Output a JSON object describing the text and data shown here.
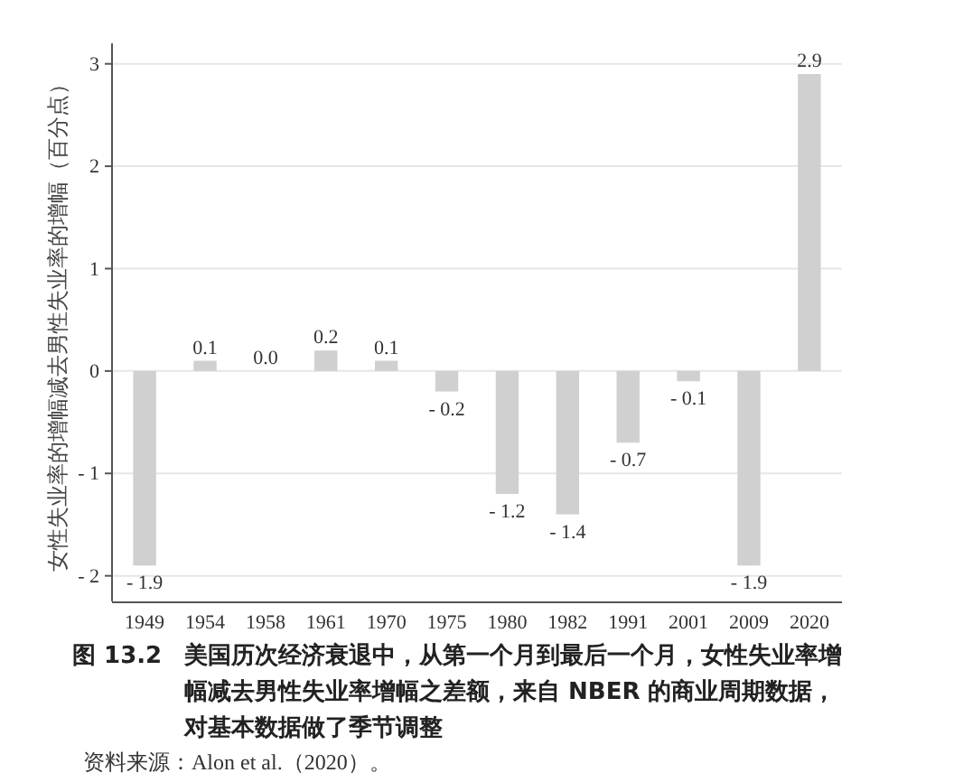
{
  "chart_data": {
    "type": "bar",
    "title": "图 13.2　美国历次经济衰退中，从第一个月到最后一个月，女性失业率增幅减去男性失业率增幅之差额，来自 NBER 的商业周期数据，对基本数据做了季节调整",
    "ylabel": "女性失业率的增幅减去男性失业率的增幅（百分点）",
    "annotations": [
      "资料来源：Alon et al.（2020）。"
    ],
    "categories": [
      "1949",
      "1954",
      "1958",
      "1961",
      "1970",
      "1975",
      "1980",
      "1982",
      "1991",
      "2001",
      "2009",
      "2020"
    ],
    "values": [
      -1.9,
      0.1,
      0.0,
      0.2,
      0.1,
      -0.2,
      -1.2,
      -1.4,
      -0.7,
      -0.1,
      -1.9,
      2.9
    ],
    "value_labels": [
      "- 1.9",
      "0.1",
      "0.0",
      "0.2",
      "0.1",
      "- 0.2",
      "- 1.2",
      "- 1.4",
      "- 0.7",
      "- 0.1",
      "- 1.9",
      "2.9"
    ],
    "color": "#d0d0d0",
    "ylim": [
      -2.25,
      3.2
    ],
    "yticks": [
      {
        "value": -2,
        "label": "- 2"
      },
      {
        "value": -1,
        "label": "- 1"
      },
      0,
      1,
      2,
      3
    ],
    "grid": "y"
  }
}
